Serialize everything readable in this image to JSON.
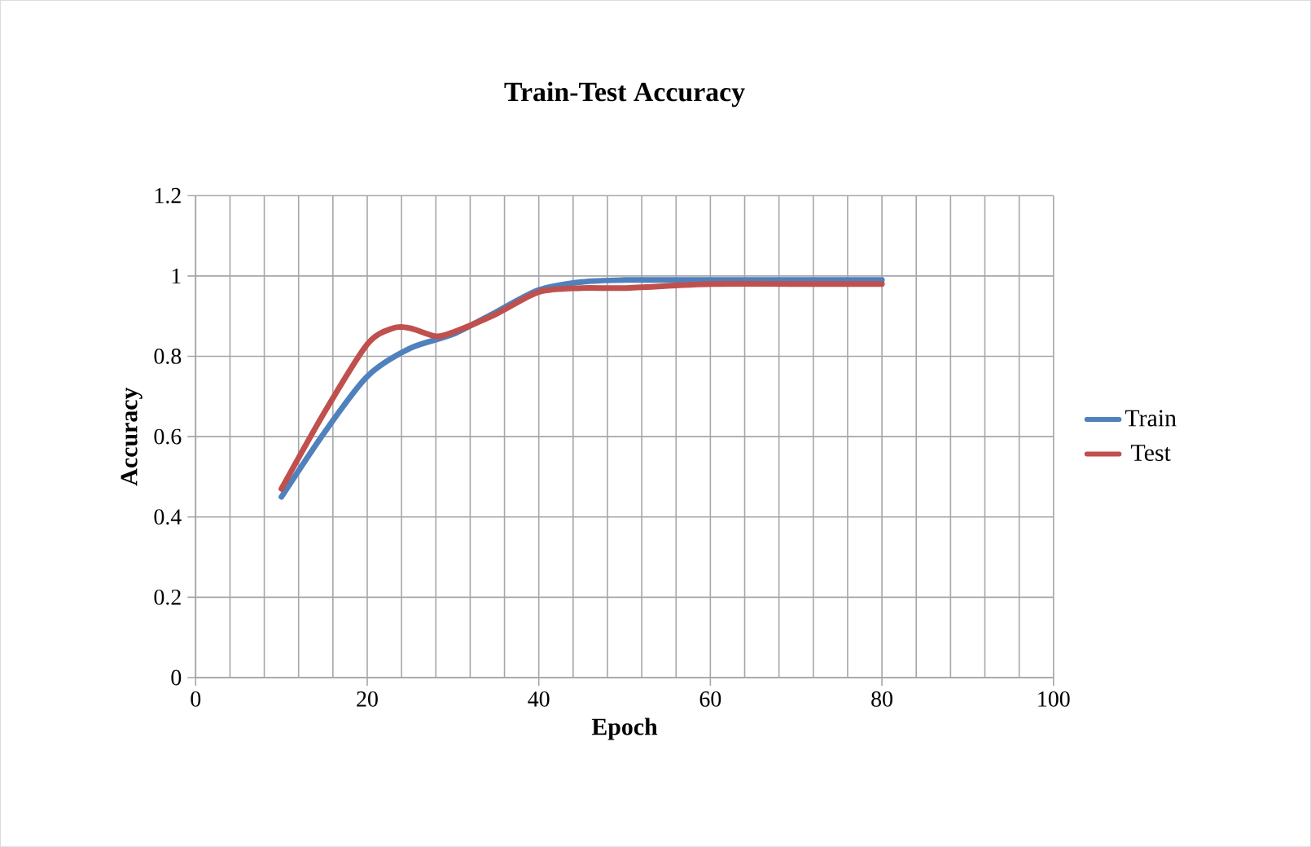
{
  "chart_data": {
    "type": "line",
    "title": "Train-Test Accuracy",
    "xlabel": "Epoch",
    "ylabel": "Accuracy",
    "xlim": [
      0,
      100
    ],
    "xticks": [
      0,
      20,
      40,
      60,
      80,
      100
    ],
    "ylim": [
      0,
      1.2
    ],
    "yticks": [
      0,
      0.2,
      0.4,
      0.6,
      0.8,
      1,
      1.2
    ],
    "grid": true,
    "legend": "right",
    "marker": "none",
    "series": [
      {
        "name": "Train",
        "color": "#4f81bd",
        "x": [
          10,
          15,
          20,
          25,
          30,
          35,
          40,
          45,
          50,
          60,
          70,
          80
        ],
        "values": [
          0.45,
          0.61,
          0.75,
          0.82,
          0.855,
          0.91,
          0.965,
          0.985,
          0.99,
          0.99,
          0.99,
          0.99
        ]
      },
      {
        "name": "Test",
        "color": "#c0504d",
        "x": [
          10,
          15,
          20,
          23,
          25,
          28,
          30,
          35,
          40,
          45,
          50,
          60,
          70,
          80
        ],
        "values": [
          0.47,
          0.66,
          0.83,
          0.87,
          0.87,
          0.85,
          0.86,
          0.905,
          0.96,
          0.97,
          0.97,
          0.98,
          0.98,
          0.98
        ]
      }
    ]
  }
}
